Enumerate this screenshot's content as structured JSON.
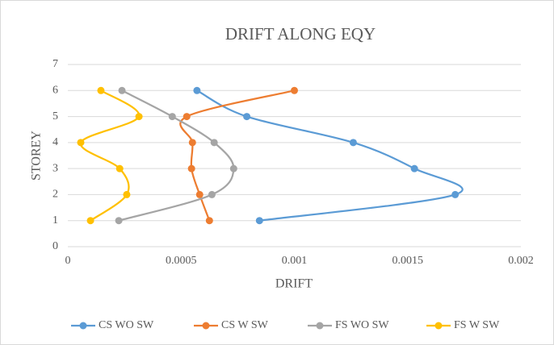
{
  "chart_data": {
    "type": "scatter",
    "title": "DRIFT ALONG  EQY",
    "x_label": "DRIFT",
    "y_label": "STOREY",
    "xlim": [
      0,
      0.002
    ],
    "xticks": [
      0,
      0.0005,
      0.001,
      0.0015,
      0.002
    ],
    "ylim": [
      0,
      7
    ],
    "yticks": [
      0,
      1,
      2,
      3,
      4,
      5,
      6,
      7
    ],
    "grid": true,
    "legend": "bottom",
    "smooth": true,
    "series": [
      {
        "name": "CS WO SW",
        "color": "#5b9bd5",
        "x": [
          0.000846,
          0.00171,
          0.00153,
          0.00126,
          0.00079,
          0.00057
        ],
        "values": [
          1,
          2,
          3,
          4,
          5,
          6
        ]
      },
      {
        "name": "CS W SW",
        "color": "#ed7d31",
        "x": [
          0.000625,
          0.000582,
          0.000546,
          0.00055,
          0.000525,
          0.001
        ],
        "values": [
          1,
          2,
          3,
          4,
          5,
          6
        ]
      },
      {
        "name": "FS WO SW",
        "color": "#a5a5a5",
        "x": [
          0.000225,
          0.000636,
          0.000732,
          0.000646,
          0.000461,
          0.000239
        ],
        "values": [
          1,
          2,
          3,
          4,
          5,
          6
        ]
      },
      {
        "name": "FS W SW",
        "color": "#ffc000",
        "x": [
          0.0001,
          0.00026,
          0.000229,
          5.7e-05,
          0.000314,
          0.000146
        ],
        "values": [
          1,
          2,
          3,
          4,
          5,
          6
        ]
      }
    ]
  }
}
